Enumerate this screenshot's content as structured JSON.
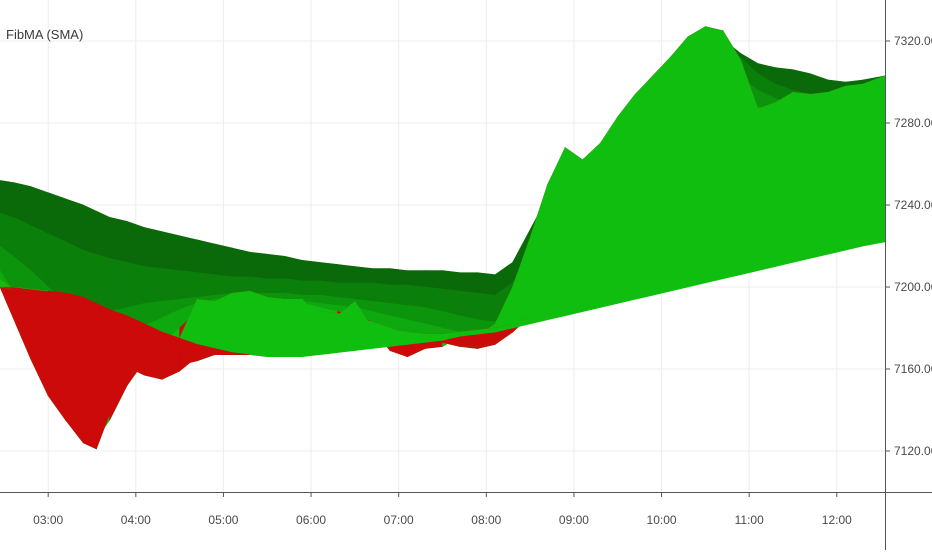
{
  "indicator": {
    "label": "FibMA (SMA)"
  },
  "colors": {
    "background": "#ffffff",
    "grid": "#ededed",
    "axis": "#555555",
    "tick_text": "#4a4a4a",
    "bear_shades": [
      "#7a0505",
      "#8f0606",
      "#a30707",
      "#b80808",
      "#cc0a0a"
    ],
    "bull_shades": [
      "#0a6a0a",
      "#0a7f0a",
      "#0c940c",
      "#0ea90e",
      "#10be10"
    ]
  },
  "chart_data": {
    "type": "area",
    "title": "FibMA (SMA)",
    "xlabel": "",
    "ylabel": "",
    "x_ticks": [
      "03:00",
      "04:00",
      "05:00",
      "06:00",
      "07:00",
      "08:00",
      "09:00",
      "10:00",
      "11:00",
      "12:00"
    ],
    "y_ticks": [
      "7120.00",
      "7160.00",
      "7200.00",
      "7240.00",
      "7280.00",
      "7320.00"
    ],
    "y_tick_values": [
      7120,
      7160,
      7200,
      7240,
      7280,
      7320
    ],
    "xlim": [
      2.45,
      12.55
    ],
    "ylim": [
      7100,
      7340
    ],
    "grid": true,
    "x": [
      2.45,
      2.6,
      2.8,
      3.0,
      3.2,
      3.4,
      3.55,
      3.7,
      3.9,
      4.1,
      4.3,
      4.5,
      4.7,
      4.9,
      5.1,
      5.3,
      5.5,
      5.7,
      5.9,
      6.1,
      6.3,
      6.5,
      6.7,
      6.9,
      7.1,
      7.3,
      7.5,
      7.7,
      7.9,
      8.1,
      8.3,
      8.5,
      8.7,
      8.9,
      9.1,
      9.3,
      9.5,
      9.7,
      9.9,
      10.1,
      10.3,
      10.5,
      10.7,
      10.9,
      11.1,
      11.3,
      11.5,
      11.7,
      11.9,
      12.1,
      12.3,
      12.55
    ],
    "series": [
      {
        "values": [
          7252,
          7251,
          7249,
          7246,
          7243,
          7240,
          7237,
          7234,
          7232,
          7229,
          7227,
          7225,
          7223,
          7221,
          7219,
          7217,
          7216,
          7215,
          7213,
          7212,
          7211,
          7210,
          7209,
          7209,
          7208,
          7208,
          7208,
          7207,
          7207,
          7206,
          7212,
          7228,
          7244,
          7257,
          7262,
          7270,
          7282,
          7292,
          7302,
          7310,
          7317,
          7322,
          7321,
          7314,
          7309,
          7307,
          7306,
          7304,
          7301,
          7300,
          7301,
          7303
        ]
      },
      {
        "values": [
          7236,
          7234,
          7230,
          7226,
          7222,
          7218,
          7216,
          7214,
          7212,
          7210,
          7209,
          7208,
          7207,
          7206,
          7205,
          7205,
          7204,
          7204,
          7203,
          7203,
          7202,
          7202,
          7202,
          7201,
          7201,
          7200,
          7199,
          7198,
          7197,
          7196,
          7202,
          7218,
          7232,
          7245,
          7253,
          7262,
          7273,
          7284,
          7294,
          7303,
          7310,
          7316,
          7318,
          7312,
          7304,
          7299,
          7296,
          7294,
          7292,
          7291,
          7292,
          7297
        ]
      },
      {
        "values": [
          7220,
          7215,
          7208,
          7200,
          7192,
          7188,
          7187,
          7188,
          7190,
          7192,
          7193,
          7194,
          7195,
          7196,
          7197,
          7197,
          7197,
          7197,
          7196,
          7196,
          7195,
          7194,
          7193,
          7192,
          7191,
          7190,
          7188,
          7186,
          7184,
          7183,
          7192,
          7208,
          7222,
          7234,
          7243,
          7252,
          7262,
          7271,
          7279,
          7287,
          7294,
          7300,
          7304,
          7302,
          7296,
          7292,
          7289,
          7288,
          7287,
          7287,
          7288,
          7292
        ]
      },
      {
        "values": [
          7208,
          7198,
          7185,
          7172,
          7162,
          7160,
          7162,
          7168,
          7175,
          7181,
          7185,
          7189,
          7192,
          7194,
          7195,
          7195,
          7195,
          7194,
          7193,
          7192,
          7191,
          7190,
          7188,
          7186,
          7184,
          7182,
          7180,
          7178,
          7177,
          7177,
          7184,
          7198,
          7212,
          7224,
          7233,
          7242,
          7251,
          7259,
          7266,
          7273,
          7279,
          7284,
          7288,
          7290,
          7288,
          7285,
          7283,
          7282,
          7282,
          7283,
          7284,
          7288
        ]
      },
      {
        "values": [
          7200,
          7185,
          7165,
          7147,
          7135,
          7128,
          7126,
          7135,
          7152,
          7164,
          7172,
          7180,
          7188,
          7192,
          7195,
          7196,
          7194,
          7192,
          7192,
          7190,
          7188,
          7186,
          7183,
          7180,
          7177,
          7175,
          7173,
          7171,
          7170,
          7172,
          7178,
          7190,
          7202,
          7213,
          7222,
          7230,
          7238,
          7245,
          7252,
          7258,
          7263,
          7268,
          7272,
          7275,
          7276,
          7276,
          7276,
          7276,
          7277,
          7278,
          7280,
          7284
        ]
      },
      {
        "values": [
          7204,
          7199,
          7183,
          7158,
          7135,
          7124,
          7121,
          7138,
          7164,
          7163,
          7158,
          7175,
          7194,
          7193,
          7197,
          7198,
          7195,
          7194,
          7194,
          7183,
          7186,
          7193,
          7180,
          7169,
          7166,
          7170,
          7171,
          7176,
          7176,
          7182,
          7200,
          7224,
          7250,
          7268,
          7262,
          7270,
          7283,
          7294,
          7303,
          7312,
          7322,
          7327,
          7325,
          7311,
          7287,
          7290,
          7295,
          7294,
          7295,
          7298,
          7299,
          7303
        ]
      },
      {
        "values": [
          7200,
          7199,
          7197,
          7193,
          7187,
          7180,
          7174,
          7167,
          7161,
          7157,
          7155,
          7159,
          7166,
          7172,
          7179,
          7183,
          7186,
          7187,
          7188,
          7188,
          7187,
          7185,
          7183,
          7180,
          7177,
          7175,
          7173,
          7171,
          7171,
          7173,
          7178,
          7186,
          7195,
          7204,
          7212,
          7220,
          7228,
          7236,
          7243,
          7250,
          7256,
          7261,
          7265,
          7268,
          7270,
          7271,
          7272,
          7273,
          7274,
          7275,
          7277,
          7280
        ]
      },
      {
        "values": [
          7200,
          7199,
          7198,
          7196,
          7193,
          7188,
          7183,
          7177,
          7171,
          7166,
          7162,
          7162,
          7164,
          7167,
          7171,
          7174,
          7177,
          7179,
          7181,
          7182,
          7182,
          7181,
          7180,
          7179,
          7178,
          7177,
          7176,
          7176,
          7176,
          7178,
          7181,
          7186,
          7192,
          7198,
          7204,
          7210,
          7216,
          7222,
          7228,
          7234,
          7239,
          7244,
          7248,
          7252,
          7255,
          7257,
          7259,
          7261,
          7263,
          7265,
          7267,
          7270
        ]
      },
      {
        "values": [
          7200,
          7199,
          7198,
          7197,
          7195,
          7191,
          7187,
          7182,
          7177,
          7172,
          7168,
          7166,
          7166,
          7167,
          7168,
          7170,
          7172,
          7173,
          7175,
          7176,
          7177,
          7177,
          7177,
          7177,
          7177,
          7177,
          7177,
          7177,
          7178,
          7179,
          7182,
          7185,
          7189,
          7193,
          7197,
          7201,
          7205,
          7209,
          7213,
          7217,
          7221,
          7225,
          7229,
          7233,
          7236,
          7239,
          7242,
          7244,
          7247,
          7249,
          7251,
          7254
        ]
      },
      {
        "values": [
          7200,
          7200,
          7199,
          7198,
          7196,
          7193,
          7190,
          7186,
          7182,
          7177,
          7173,
          7170,
          7168,
          7167,
          7167,
          7167,
          7168,
          7168,
          7169,
          7170,
          7171,
          7172,
          7173,
          7174,
          7175,
          7176,
          7177,
          7178,
          7179,
          7180,
          7182,
          7184,
          7186,
          7188,
          7190,
          7193,
          7195,
          7198,
          7200,
          7202,
          7205,
          7207,
          7210,
          7213,
          7215,
          7218,
          7221,
          7224,
          7226,
          7228,
          7230,
          7232
        ]
      },
      {
        "values": [
          7200,
          7200,
          7199,
          7198,
          7197,
          7195,
          7192,
          7189,
          7186,
          7182,
          7178,
          7175,
          7172,
          7170,
          7168,
          7167,
          7166,
          7166,
          7166,
          7167,
          7168,
          7169,
          7170,
          7171,
          7172,
          7173,
          7174,
          7176,
          7177,
          7178,
          7180,
          7182,
          7184,
          7186,
          7188,
          7190,
          7192,
          7194,
          7196,
          7198,
          7200,
          7202,
          7204,
          7206,
          7208,
          7210,
          7212,
          7214,
          7216,
          7218,
          7220,
          7222
        ]
      }
    ]
  }
}
